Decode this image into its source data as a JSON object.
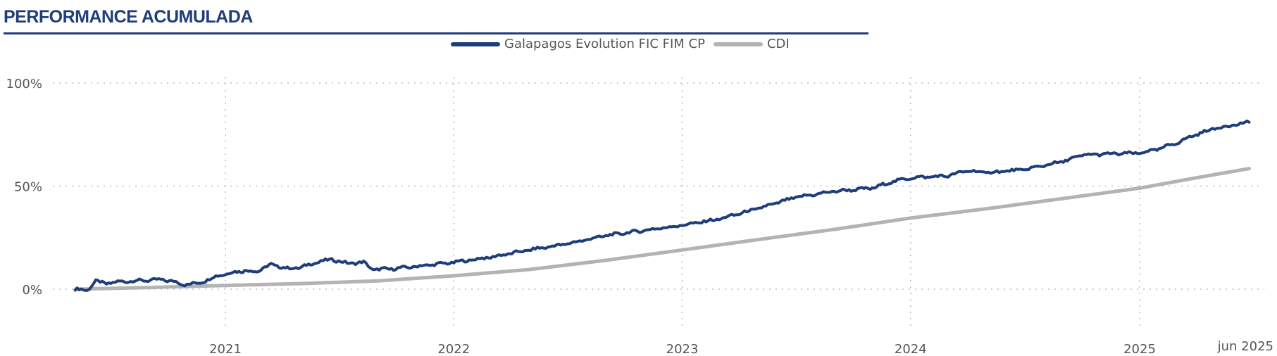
{
  "page": {
    "title": "PERFORMANCE ACUMULADA",
    "title_color": "#1f3d7a"
  },
  "chart_data": {
    "type": "line",
    "title": "PERFORMANCE ACUMULADA",
    "xlabel": "",
    "ylabel": "",
    "x_ticks": [
      "2021",
      "2022",
      "2023",
      "2024",
      "2025"
    ],
    "x_end_label": "jun 2025",
    "y_ticks": [
      "0%",
      "50%",
      "100%"
    ],
    "ylim": [
      -15,
      105
    ],
    "xlim": [
      "2020-05-01",
      "2025-06-30"
    ],
    "grid": true,
    "legend_position": "top",
    "series": [
      {
        "name": "Galapagos Evolution FIC FIM CP",
        "color": "#1f3d7a",
        "points": [
          [
            "2020-05-06",
            0
          ],
          [
            "2020-05-25",
            -0.5
          ],
          [
            "2020-06-08",
            3.8
          ],
          [
            "2020-06-25",
            2.8
          ],
          [
            "2020-07-20",
            3.7
          ],
          [
            "2020-08-20",
            4.2
          ],
          [
            "2020-09-20",
            4.6
          ],
          [
            "2020-10-10",
            3.8
          ],
          [
            "2020-10-25",
            2.2
          ],
          [
            "2020-11-20",
            3.0
          ],
          [
            "2020-12-20",
            6.5
          ],
          [
            "2021-01-10",
            8.0
          ],
          [
            "2021-02-01",
            9.0
          ],
          [
            "2021-02-20",
            8.5
          ],
          [
            "2021-03-15",
            12.0
          ],
          [
            "2021-04-10",
            10.0
          ],
          [
            "2021-05-01",
            10.5
          ],
          [
            "2021-05-20",
            12.5
          ],
          [
            "2021-06-20",
            14.5
          ],
          [
            "2021-07-15",
            12.5
          ],
          [
            "2021-08-10",
            13.0
          ],
          [
            "2021-08-25",
            9.5
          ],
          [
            "2021-09-30",
            10.0
          ],
          [
            "2021-11-01",
            11.0
          ],
          [
            "2021-12-01",
            12.0
          ],
          [
            "2022-01-01",
            13.0
          ],
          [
            "2022-03-01",
            15.5
          ],
          [
            "2022-05-01",
            19.0
          ],
          [
            "2022-07-01",
            22.0
          ],
          [
            "2022-09-01",
            26.0
          ],
          [
            "2022-11-01",
            28.5
          ],
          [
            "2023-01-01",
            31.0
          ],
          [
            "2023-03-01",
            34.0
          ],
          [
            "2023-05-01",
            39.0
          ],
          [
            "2023-07-01",
            44.5
          ],
          [
            "2023-09-01",
            47.5
          ],
          [
            "2023-11-01",
            49.0
          ],
          [
            "2023-12-01",
            52.0
          ],
          [
            "2024-01-01",
            54.0
          ],
          [
            "2024-03-01",
            55.0
          ],
          [
            "2024-04-01",
            57.5
          ],
          [
            "2024-05-01",
            56.5
          ],
          [
            "2024-07-01",
            58.0
          ],
          [
            "2024-09-01",
            62.0
          ],
          [
            "2024-10-01",
            65.0
          ],
          [
            "2024-11-01",
            65.5
          ],
          [
            "2025-01-01",
            66.0
          ],
          [
            "2025-02-01",
            68.0
          ],
          [
            "2025-03-01",
            71.0
          ],
          [
            "2025-04-01",
            75.0
          ],
          [
            "2025-05-01",
            78.0
          ],
          [
            "2025-06-25",
            81.0
          ]
        ]
      },
      {
        "name": "CDI",
        "color": "#b3b3b3",
        "points": [
          [
            "2020-05-06",
            0
          ],
          [
            "2020-09-01",
            0.8
          ],
          [
            "2021-01-01",
            1.8
          ],
          [
            "2021-05-01",
            2.7
          ],
          [
            "2021-09-01",
            4.0
          ],
          [
            "2022-01-01",
            6.5
          ],
          [
            "2022-05-01",
            9.5
          ],
          [
            "2022-09-01",
            14.0
          ],
          [
            "2023-01-01",
            19.0
          ],
          [
            "2023-05-01",
            24.0
          ],
          [
            "2023-09-01",
            29.0
          ],
          [
            "2024-01-01",
            34.5
          ],
          [
            "2024-05-01",
            39.0
          ],
          [
            "2024-09-01",
            44.0
          ],
          [
            "2025-01-01",
            49.0
          ],
          [
            "2025-04-01",
            54.0
          ],
          [
            "2025-06-25",
            58.5
          ]
        ]
      }
    ]
  }
}
